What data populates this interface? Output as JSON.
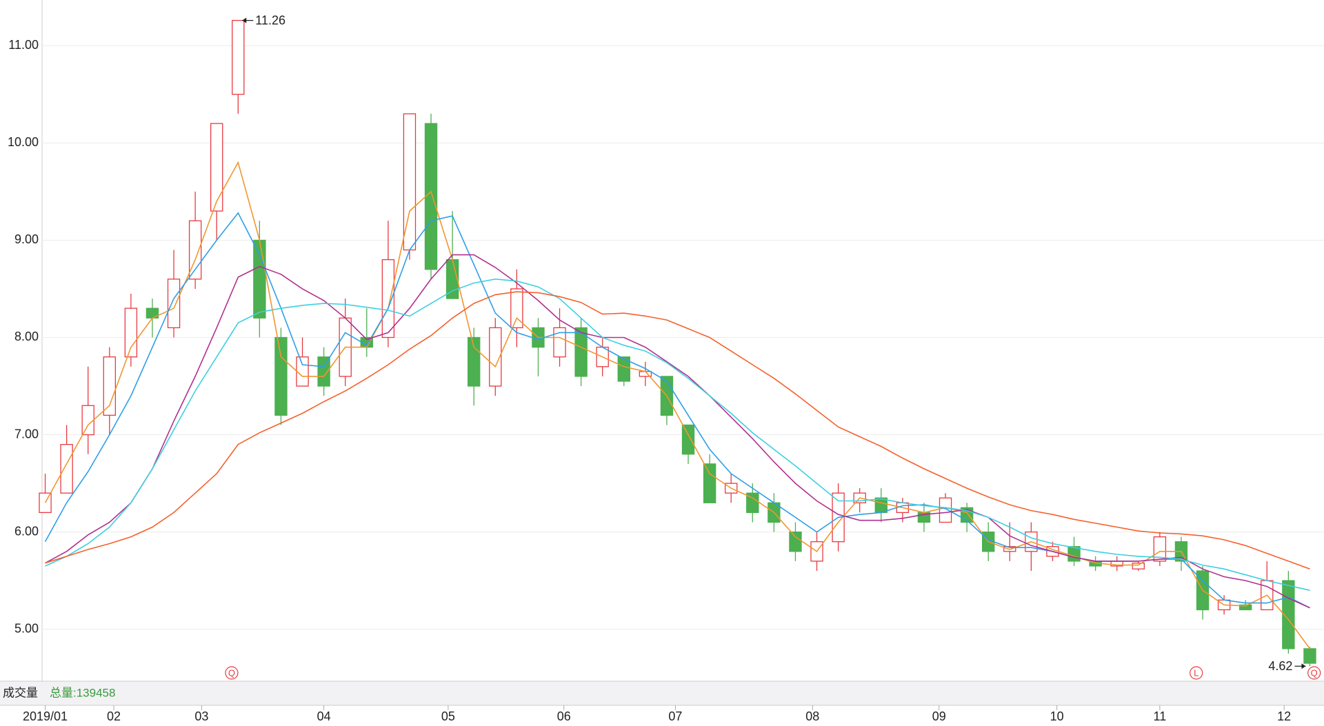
{
  "chart_data": {
    "type": "candlestick",
    "ylim": [
      4.48,
      11.47
    ],
    "yticks": [
      {
        "value": 5,
        "label": "5.00"
      },
      {
        "value": 6,
        "label": "6.00"
      },
      {
        "value": 7,
        "label": "7.00"
      },
      {
        "value": 8,
        "label": "8.00"
      },
      {
        "value": 9,
        "label": "9.00"
      },
      {
        "value": 10,
        "label": "10.00"
      },
      {
        "value": 11,
        "label": "11.00"
      }
    ],
    "xticks": [
      {
        "value": 0,
        "label": "2019/01"
      },
      {
        "value": 3.2,
        "label": "02"
      },
      {
        "value": 7.3,
        "label": "03"
      },
      {
        "value": 13,
        "label": "04"
      },
      {
        "value": 18.8,
        "label": "05"
      },
      {
        "value": 24.2,
        "label": "06"
      },
      {
        "value": 29.4,
        "label": "07"
      },
      {
        "value": 35.8,
        "label": "08"
      },
      {
        "value": 41.7,
        "label": "09"
      },
      {
        "value": 47.2,
        "label": "10"
      },
      {
        "value": 52,
        "label": "11"
      },
      {
        "value": 57.8,
        "label": "12"
      }
    ],
    "grid": true,
    "up_color": "#e8393f",
    "down_color": "#4caf50",
    "open": [
      6.2,
      6.4,
      7.0,
      7.2,
      7.8,
      8.3,
      8.1,
      8.6,
      9.3,
      10.5,
      9.0,
      8.0,
      7.5,
      7.8,
      7.6,
      8.0,
      8.0,
      8.9,
      10.2,
      8.8,
      8.0,
      7.5,
      8.1,
      8.1,
      7.8,
      8.1,
      7.7,
      7.8,
      7.6,
      7.6,
      7.1,
      6.7,
      6.4,
      6.4,
      6.3,
      6.0,
      5.7,
      5.9,
      6.3,
      6.35,
      6.2,
      6.2,
      6.1,
      6.25,
      6.0,
      5.8,
      5.8,
      5.75,
      5.85,
      5.7,
      5.65,
      5.62,
      5.7,
      5.9,
      5.6,
      5.2,
      5.25,
      5.2,
      5.5,
      4.8
    ],
    "high": [
      6.6,
      7.1,
      7.7,
      7.9,
      8.45,
      8.4,
      8.9,
      9.5,
      10.2,
      11.26,
      9.2,
      8.1,
      8.0,
      7.9,
      8.4,
      8.3,
      9.2,
      10.3,
      10.3,
      9.3,
      8.1,
      8.2,
      8.7,
      8.2,
      8.3,
      8.2,
      8.0,
      7.8,
      7.75,
      7.6,
      7.1,
      6.8,
      6.6,
      6.5,
      6.4,
      6.1,
      6.0,
      6.5,
      6.45,
      6.45,
      6.35,
      6.3,
      6.4,
      6.3,
      6.1,
      6.1,
      6.1,
      5.9,
      5.95,
      5.75,
      5.75,
      5.7,
      6.0,
      5.95,
      5.65,
      5.35,
      5.3,
      5.7,
      5.6,
      4.82
    ],
    "low": [
      6.2,
      6.4,
      6.8,
      7.0,
      7.7,
      8.0,
      8.0,
      8.5,
      9.0,
      10.3,
      8.0,
      7.1,
      7.5,
      7.4,
      7.5,
      7.8,
      7.9,
      8.8,
      8.6,
      8.4,
      7.3,
      7.4,
      7.9,
      7.6,
      7.7,
      7.5,
      7.6,
      7.5,
      7.5,
      7.1,
      6.7,
      6.3,
      6.3,
      6.1,
      6.0,
      5.7,
      5.6,
      5.8,
      6.2,
      6.1,
      6.1,
      6.0,
      6.1,
      6.0,
      5.7,
      5.7,
      5.6,
      5.7,
      5.65,
      5.6,
      5.6,
      5.6,
      5.65,
      5.6,
      5.1,
      5.15,
      5.2,
      5.2,
      4.75,
      4.62
    ],
    "close": [
      6.4,
      6.9,
      7.3,
      7.8,
      8.3,
      8.2,
      8.6,
      9.2,
      10.2,
      11.26,
      8.2,
      7.2,
      7.8,
      7.5,
      8.2,
      7.9,
      8.8,
      10.3,
      8.7,
      8.4,
      7.5,
      8.1,
      8.5,
      7.9,
      8.1,
      7.6,
      7.9,
      7.55,
      7.65,
      7.2,
      6.8,
      6.3,
      6.5,
      6.2,
      6.1,
      5.8,
      5.9,
      6.4,
      6.4,
      6.2,
      6.3,
      6.1,
      6.35,
      6.1,
      5.8,
      5.85,
      6.0,
      5.85,
      5.7,
      5.65,
      5.7,
      5.68,
      5.95,
      5.7,
      5.2,
      5.3,
      5.2,
      5.5,
      4.8,
      4.65
    ],
    "series": [
      {
        "color": "#f0962e",
        "values": [
          6.3,
          6.7,
          7.1,
          7.3,
          7.9,
          8.2,
          8.3,
          8.8,
          9.4,
          9.8,
          9.0,
          7.8,
          7.6,
          7.6,
          7.9,
          7.9,
          8.3,
          9.3,
          9.5,
          8.8,
          7.9,
          7.7,
          8.2,
          8.0,
          8.0,
          7.9,
          7.8,
          7.7,
          7.65,
          7.4,
          7.0,
          6.6,
          6.45,
          6.35,
          6.2,
          5.95,
          5.8,
          6.1,
          6.35,
          6.3,
          6.25,
          6.2,
          6.25,
          6.2,
          5.9,
          5.82,
          5.9,
          5.82,
          5.75,
          5.68,
          5.66,
          5.66,
          5.8,
          5.8,
          5.4,
          5.25,
          5.24,
          5.35,
          5.1,
          4.8
        ]
      },
      {
        "color": "#2e9ee8",
        "values": [
          5.9,
          6.3,
          6.62,
          7.0,
          7.4,
          7.9,
          8.4,
          8.7,
          9.0,
          9.28,
          8.85,
          8.3,
          7.72,
          7.7,
          8.05,
          7.92,
          8.3,
          8.9,
          9.2,
          9.25,
          8.75,
          8.25,
          8.05,
          7.98,
          8.05,
          8.05,
          7.9,
          7.78,
          7.68,
          7.55,
          7.2,
          6.85,
          6.6,
          6.45,
          6.3,
          6.15,
          6.0,
          6.15,
          6.18,
          6.2,
          6.27,
          6.28,
          6.24,
          6.12,
          5.92,
          5.84,
          5.84,
          5.8,
          5.74,
          5.7,
          5.7,
          5.7,
          5.72,
          5.72,
          5.5,
          5.3,
          5.27,
          5.27,
          5.33,
          5.22
        ]
      },
      {
        "color": "#b0308f",
        "values": [
          5.68,
          5.8,
          5.97,
          6.1,
          6.3,
          6.65,
          7.14,
          7.6,
          8.1,
          8.62,
          8.73,
          8.65,
          8.5,
          8.38,
          8.2,
          7.98,
          8.05,
          8.3,
          8.6,
          8.85,
          8.85,
          8.72,
          8.56,
          8.38,
          8.18,
          8.05,
          8.0,
          8.0,
          7.9,
          7.75,
          7.6,
          7.4,
          7.18,
          6.96,
          6.72,
          6.5,
          6.32,
          6.18,
          6.12,
          6.12,
          6.14,
          6.18,
          6.2,
          6.23,
          6.15,
          5.96,
          5.86,
          5.8,
          5.74,
          5.7,
          5.7,
          5.7,
          5.72,
          5.74,
          5.62,
          5.54,
          5.5,
          5.44,
          5.32,
          5.22
        ]
      },
      {
        "color": "#3ccfe0",
        "values": [
          5.65,
          5.75,
          5.88,
          6.05,
          6.3,
          6.65,
          7.05,
          7.45,
          7.8,
          8.15,
          8.26,
          8.3,
          8.33,
          8.35,
          8.34,
          8.31,
          8.28,
          8.22,
          8.35,
          8.48,
          8.56,
          8.6,
          8.58,
          8.52,
          8.4,
          8.2,
          8.0,
          7.92,
          7.86,
          7.74,
          7.58,
          7.4,
          7.22,
          7.02,
          6.85,
          6.68,
          6.5,
          6.32,
          6.32,
          6.34,
          6.3,
          6.27,
          6.25,
          6.22,
          6.15,
          6.05,
          5.94,
          5.88,
          5.84,
          5.8,
          5.77,
          5.75,
          5.74,
          5.72,
          5.66,
          5.62,
          5.56,
          5.5,
          5.45,
          5.4
        ]
      },
      {
        "color": "#f5602a",
        "values": [
          5.68,
          5.75,
          5.82,
          5.88,
          5.95,
          6.05,
          6.2,
          6.4,
          6.6,
          6.9,
          7.02,
          7.12,
          7.22,
          7.34,
          7.45,
          7.58,
          7.72,
          7.88,
          8.02,
          8.2,
          8.35,
          8.44,
          8.47,
          8.46,
          8.42,
          8.36,
          8.24,
          8.25,
          8.22,
          8.18,
          8.09,
          8.0,
          7.86,
          7.72,
          7.58,
          7.42,
          7.25,
          7.08,
          6.98,
          6.88,
          6.76,
          6.65,
          6.55,
          6.45,
          6.36,
          6.28,
          6.22,
          6.18,
          6.13,
          6.09,
          6.05,
          6.01,
          5.99,
          5.98,
          5.96,
          5.92,
          5.86,
          5.78,
          5.7,
          5.62
        ]
      }
    ],
    "max_label": 11.26,
    "min_label": 4.62,
    "signals": [
      {
        "x": 8.7,
        "label": "Q"
      },
      {
        "x": 53.7,
        "label": "L"
      },
      {
        "x": 59.2,
        "label": "Q"
      }
    ],
    "volume_title": "成交量",
    "volume_total": "总量:139458"
  }
}
